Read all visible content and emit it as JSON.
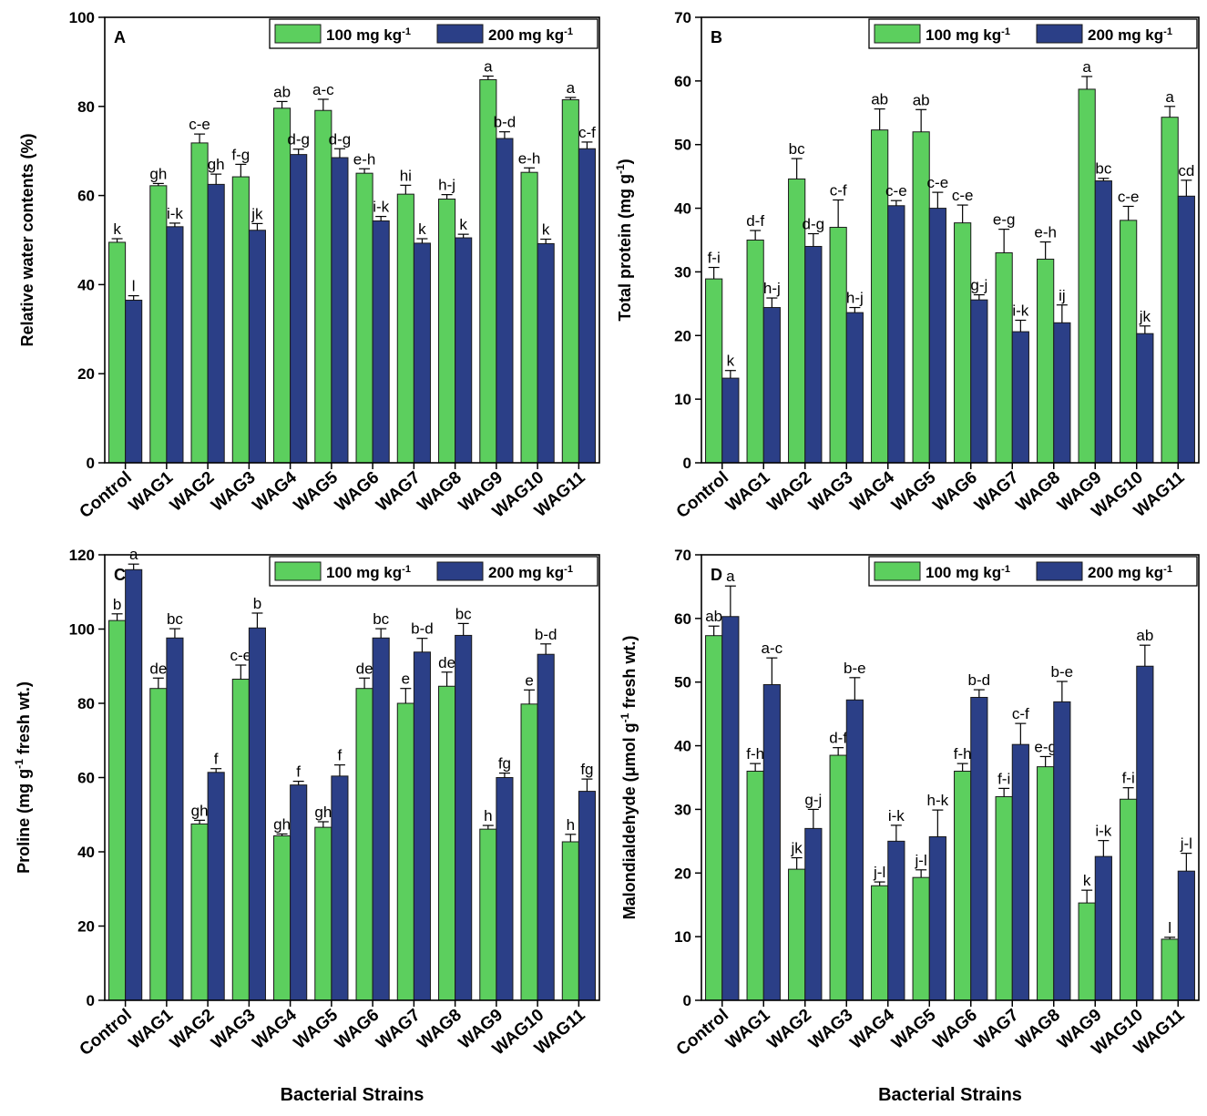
{
  "figure": {
    "xlabel": "Bacterial Strains"
  },
  "colors": {
    "series1": "#5ccf5e",
    "series2": "#2b3f87",
    "axis": "#000000",
    "bar_edge": "#1a1a1a"
  },
  "chart_data": [
    {
      "id": "A",
      "panel_label": "A",
      "type": "bar",
      "ylabel": "Relative water contents (%)",
      "ylim": [
        0,
        100
      ],
      "yticks": [
        0,
        20,
        40,
        60,
        80,
        100
      ],
      "categories": [
        "Control",
        "WAG1",
        "WAG2",
        "WAG3",
        "WAG4",
        "WAG5",
        "WAG6",
        "WAG7",
        "WAG8",
        "WAG9",
        "WAG10",
        "WAG11"
      ],
      "legend_position": "top-right",
      "series": [
        {
          "name": "100 mg kg",
          "unit_sup": "-1",
          "values": [
            49.5,
            62.2,
            71.8,
            64.2,
            79.6,
            79.1,
            65.0,
            60.3,
            59.2,
            86.0,
            65.2,
            81.5
          ],
          "errors": [
            0.8,
            0.5,
            2.0,
            2.8,
            1.5,
            2.5,
            1.0,
            2.0,
            1.0,
            0.8,
            1.0,
            0.5
          ],
          "letters": [
            "k",
            "gh",
            "c-e",
            "f-g",
            "ab",
            "a-c",
            "e-h",
            "hi",
            "h-j",
            "a",
            "e-h",
            "a"
          ]
        },
        {
          "name": "200 mg kg",
          "unit_sup": "-1",
          "values": [
            36.5,
            53.0,
            62.5,
            52.2,
            69.2,
            68.5,
            54.3,
            49.3,
            50.5,
            72.8,
            49.2,
            70.5
          ],
          "errors": [
            1.0,
            0.8,
            2.3,
            1.5,
            1.2,
            2.0,
            1.0,
            1.0,
            0.8,
            1.5,
            1.0,
            1.5
          ],
          "letters": [
            "l",
            "i-k",
            "gh",
            "jk",
            "d-g",
            "d-g",
            "i-k",
            "k",
            "k",
            "b-d",
            "k",
            "c-f"
          ]
        }
      ]
    },
    {
      "id": "B",
      "panel_label": "B",
      "type": "bar",
      "ylabel": "Total protein (mg g",
      "ylabel_sup": "-1",
      "ylabel_post": ")",
      "ylim": [
        0,
        70
      ],
      "yticks": [
        0,
        10,
        20,
        30,
        40,
        50,
        60,
        70
      ],
      "categories": [
        "Control",
        "WAG1",
        "WAG2",
        "WAG3",
        "WAG4",
        "WAG5",
        "WAG6",
        "WAG7",
        "WAG8",
        "WAG9",
        "WAG10",
        "WAG11"
      ],
      "legend_position": "top-right",
      "series": [
        {
          "name": "100 mg kg",
          "unit_sup": "-1",
          "values": [
            28.9,
            35.0,
            44.6,
            37.0,
            52.3,
            52.0,
            37.7,
            33.0,
            32.0,
            58.7,
            38.1,
            54.3
          ],
          "errors": [
            1.8,
            1.5,
            3.2,
            4.3,
            3.3,
            3.5,
            2.8,
            3.7,
            2.7,
            2.0,
            2.2,
            1.7
          ],
          "letters": [
            "f-i",
            "d-f",
            "bc",
            "c-f",
            "ab",
            "ab",
            "c-e",
            "e-g",
            "e-h",
            "a",
            "c-e",
            "a"
          ]
        },
        {
          "name": "200 mg kg",
          "unit_sup": "-1",
          "values": [
            13.3,
            24.4,
            34.0,
            23.6,
            40.4,
            40.0,
            25.6,
            20.6,
            22.0,
            44.3,
            20.3,
            41.9
          ],
          "errors": [
            1.2,
            1.5,
            2.0,
            0.8,
            0.8,
            2.5,
            0.8,
            1.8,
            2.8,
            0.4,
            1.2,
            2.5
          ],
          "letters": [
            "k",
            "h-j",
            "d-g",
            "h-j",
            "c-e",
            "c-e",
            "g-j",
            "i-k",
            "ij",
            "bc",
            "jk",
            "cd"
          ]
        }
      ]
    },
    {
      "id": "C",
      "panel_label": "C",
      "type": "bar",
      "ylabel": "Proline (mg g",
      "ylabel_sup": "-1",
      "ylabel_post": " fresh wt.)",
      "ylim": [
        0,
        120
      ],
      "yticks": [
        0,
        20,
        40,
        60,
        80,
        100,
        120
      ],
      "categories": [
        "Control",
        "WAG1",
        "WAG2",
        "WAG3",
        "WAG4",
        "WAG5",
        "WAG6",
        "WAG7",
        "WAG8",
        "WAG9",
        "WAG10",
        "WAG11"
      ],
      "legend_position": "top-right",
      "series": [
        {
          "name": "100 mg kg",
          "unit_sup": "-1",
          "values": [
            102.3,
            84.0,
            47.5,
            86.5,
            44.3,
            46.6,
            84.0,
            80.0,
            84.6,
            46.1,
            79.8,
            42.7
          ],
          "errors": [
            1.8,
            2.8,
            1.0,
            3.8,
            0.5,
            1.5,
            2.8,
            4.0,
            3.8,
            1.0,
            3.8,
            2.0
          ],
          "letters": [
            "b",
            "de",
            "gh",
            "c-e",
            "gh",
            "gh",
            "de",
            "e",
            "de",
            "h",
            "e",
            "h"
          ]
        },
        {
          "name": "200 mg kg",
          "unit_sup": "-1",
          "values": [
            116.0,
            97.6,
            61.4,
            100.3,
            58.0,
            60.4,
            97.6,
            93.8,
            98.3,
            60.0,
            93.2,
            56.3
          ],
          "errors": [
            1.5,
            2.5,
            1.0,
            4.0,
            1.0,
            3.0,
            2.5,
            3.7,
            3.2,
            1.2,
            2.8,
            3.3
          ],
          "letters": [
            "a",
            "bc",
            "f",
            "b",
            "f",
            "f",
            "bc",
            "b-d",
            "bc",
            "fg",
            "b-d",
            "fg"
          ]
        }
      ]
    },
    {
      "id": "D",
      "panel_label": "D",
      "type": "bar",
      "ylabel": "Malondialdehyde (μmol g",
      "ylabel_sup": "-1",
      "ylabel_post": " fresh wt.)",
      "ylim": [
        0,
        70
      ],
      "yticks": [
        0,
        10,
        20,
        30,
        40,
        50,
        60,
        70
      ],
      "categories": [
        "Control",
        "WAG1",
        "WAG2",
        "WAG3",
        "WAG4",
        "WAG5",
        "WAG6",
        "WAG7",
        "WAG8",
        "WAG9",
        "WAG10",
        "WAG11"
      ],
      "legend_position": "top-right",
      "series": [
        {
          "name": "100 mg kg",
          "unit_sup": "-1",
          "values": [
            57.3,
            36.0,
            20.6,
            38.5,
            18.0,
            19.3,
            36.0,
            32.0,
            36.7,
            15.3,
            31.6,
            9.6
          ],
          "errors": [
            1.5,
            1.2,
            1.8,
            1.2,
            0.6,
            1.2,
            1.2,
            1.3,
            1.6,
            2.0,
            1.8,
            0.3
          ],
          "letters": [
            "ab",
            "f-h",
            "jk",
            "d-f",
            "j-l",
            "j-l",
            "f-h",
            "f-i",
            "e-g",
            "k",
            "f-i",
            "l"
          ]
        },
        {
          "name": "200 mg kg",
          "unit_sup": "-1",
          "values": [
            60.3,
            49.6,
            27.0,
            47.2,
            25.0,
            25.7,
            47.6,
            40.2,
            46.9,
            22.6,
            52.5,
            20.3
          ],
          "errors": [
            4.8,
            4.2,
            3.0,
            3.5,
            2.5,
            4.2,
            1.2,
            3.3,
            3.2,
            2.5,
            3.3,
            2.8
          ],
          "letters": [
            "a",
            "a-c",
            "g-j",
            "b-e",
            "i-k",
            "h-k",
            "b-d",
            "c-f",
            "b-e",
            "i-k",
            "ab",
            "j-l"
          ]
        }
      ]
    }
  ]
}
